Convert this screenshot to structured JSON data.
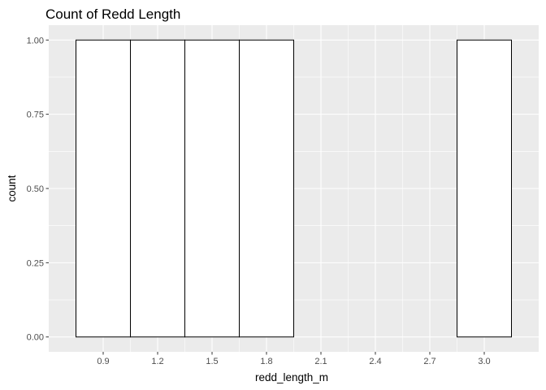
{
  "chart_data": {
    "type": "bar",
    "title": "Count of Redd Length",
    "xlabel": "redd_length_m",
    "ylabel": "count",
    "bins": [
      {
        "xmin": 0.75,
        "xmax": 1.05,
        "count": 1
      },
      {
        "xmin": 1.05,
        "xmax": 1.35,
        "count": 1
      },
      {
        "xmin": 1.35,
        "xmax": 1.65,
        "count": 1
      },
      {
        "xmin": 1.65,
        "xmax": 1.95,
        "count": 1
      },
      {
        "xmin": 1.95,
        "xmax": 2.25,
        "count": 0
      },
      {
        "xmin": 2.25,
        "xmax": 2.55,
        "count": 0
      },
      {
        "xmin": 2.55,
        "xmax": 2.85,
        "count": 0
      },
      {
        "xmin": 2.85,
        "xmax": 3.15,
        "count": 1
      }
    ],
    "xlim": [
      0.6,
      3.3
    ],
    "ylim": [
      -0.05,
      1.05
    ],
    "x_ticks": [
      0.9,
      1.2,
      1.5,
      1.8,
      2.1,
      2.4,
      2.7,
      3.0
    ],
    "x_tick_labels": [
      "0.9",
      "1.2",
      "1.5",
      "1.8",
      "2.1",
      "2.4",
      "2.7",
      "3.0"
    ],
    "y_ticks": [
      0,
      0.25,
      0.5,
      0.75,
      1.0
    ],
    "y_tick_labels": [
      "0.00",
      "0.25",
      "0.50",
      "0.75",
      "1.00"
    ],
    "grid": true,
    "colors": {
      "panel_background": "#ebebeb",
      "grid_major": "#ffffff",
      "bar_fill": "#ffffff",
      "bar_outline": "#000000"
    }
  }
}
